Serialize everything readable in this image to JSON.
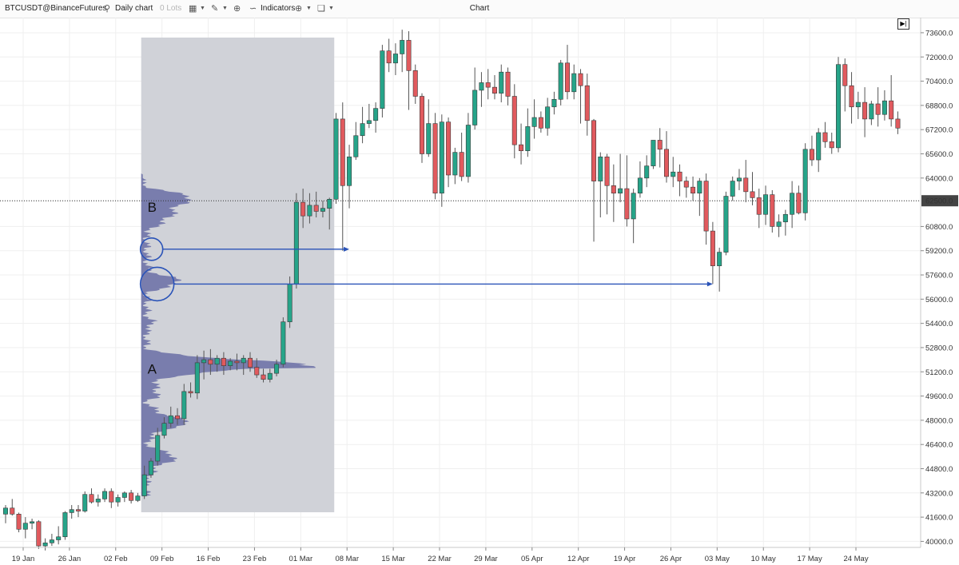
{
  "toolbar": {
    "symbol": "BTCUSDT@BinanceFutures",
    "timeframe": "Daily chart",
    "lots": "0 Lots",
    "indicators": "Indicators",
    "title": "Chart"
  },
  "colors": {
    "up": "#26a489",
    "down": "#e15a5e",
    "profile": "#6f73a8",
    "highlight": "#d0d2d8",
    "arrow": "#2a53b8"
  },
  "chart_data": {
    "type": "candlestick",
    "yaxis": {
      "range": [
        39600,
        74600
      ],
      "ticks": [
        73600,
        72000,
        70400,
        68800,
        67200,
        65600,
        64000,
        62500,
        60800,
        59200,
        57600,
        56000,
        54400,
        52800,
        51200,
        49600,
        48000,
        46400,
        44800,
        43200,
        41600,
        40000
      ],
      "current_price": 62500
    },
    "xaxis": {
      "ticks": [
        {
          "label": "19 Jan",
          "index": 0
        },
        {
          "label": "26 Jan",
          "index": 7
        },
        {
          "label": "02 Feb",
          "index": 14
        },
        {
          "label": "09 Feb",
          "index": 21
        },
        {
          "label": "16 Feb",
          "index": 28
        },
        {
          "label": "23 Feb",
          "index": 35
        },
        {
          "label": "01 Mar",
          "index": 42
        },
        {
          "label": "08 Mar",
          "index": 49
        },
        {
          "label": "15 Mar",
          "index": 56
        },
        {
          "label": "22 Mar",
          "index": 63
        },
        {
          "label": "29 Mar",
          "index": 70
        },
        {
          "label": "05 Apr",
          "index": 77
        },
        {
          "label": "12 Apr",
          "index": 84
        },
        {
          "label": "19 Apr",
          "index": 91
        },
        {
          "label": "26 Apr",
          "index": 98
        },
        {
          "label": "03 May",
          "index": 105
        },
        {
          "label": "10 May",
          "index": 112
        },
        {
          "label": "17 May",
          "index": 119
        },
        {
          "label": "24 May",
          "index": 126
        }
      ]
    },
    "candles": [
      [
        41800,
        42400,
        41200,
        42200
      ],
      [
        42200,
        42800,
        41700,
        41800
      ],
      [
        41800,
        41900,
        40600,
        40800
      ],
      [
        40800,
        41600,
        40200,
        41200
      ],
      [
        41200,
        41500,
        40800,
        41300
      ],
      [
        41300,
        41400,
        39500,
        39700
      ],
      [
        39700,
        40200,
        39400,
        39900
      ],
      [
        39900,
        40500,
        39700,
        40100
      ],
      [
        40100,
        41000,
        39800,
        40300
      ],
      [
        40300,
        42000,
        40100,
        41900
      ],
      [
        41900,
        42400,
        41500,
        42100
      ],
      [
        42100,
        42400,
        41600,
        42000
      ],
      [
        42000,
        43300,
        41900,
        43100
      ],
      [
        43100,
        43500,
        42500,
        42600
      ],
      [
        42600,
        43100,
        42300,
        42800
      ],
      [
        42800,
        43500,
        42600,
        43300
      ],
      [
        43300,
        43500,
        42200,
        42600
      ],
      [
        42600,
        43100,
        42300,
        42900
      ],
      [
        42900,
        43300,
        42600,
        43200
      ],
      [
        43200,
        43400,
        42500,
        42700
      ],
      [
        42700,
        43200,
        42600,
        43000
      ],
      [
        43000,
        45000,
        42800,
        44400
      ],
      [
        44400,
        45500,
        44200,
        45300
      ],
      [
        45300,
        47500,
        45000,
        47000
      ],
      [
        47000,
        48200,
        46800,
        47800
      ],
      [
        47800,
        48900,
        47500,
        48300
      ],
      [
        48300,
        48800,
        47700,
        48100
      ],
      [
        48100,
        50400,
        47700,
        49900
      ],
      [
        49900,
        50500,
        49500,
        49800
      ],
      [
        49800,
        52300,
        49400,
        51800
      ],
      [
        51800,
        52600,
        50700,
        52000
      ],
      [
        52000,
        52700,
        51000,
        51700
      ],
      [
        51700,
        52300,
        51200,
        52100
      ],
      [
        52100,
        52500,
        51000,
        51600
      ],
      [
        51600,
        52100,
        51300,
        51900
      ],
      [
        51900,
        52400,
        51300,
        51800
      ],
      [
        51800,
        52300,
        51000,
        52100
      ],
      [
        52100,
        52500,
        51200,
        51500
      ],
      [
        51500,
        52100,
        50800,
        51000
      ],
      [
        51000,
        51400,
        50500,
        50700
      ],
      [
        50700,
        51400,
        50500,
        51100
      ],
      [
        51100,
        52000,
        50900,
        51700
      ],
      [
        51700,
        54800,
        51500,
        54500
      ],
      [
        54500,
        57500,
        54100,
        57000
      ],
      [
        57000,
        63000,
        56700,
        62400
      ],
      [
        62400,
        63300,
        60700,
        61500
      ],
      [
        61500,
        63000,
        61000,
        62200
      ],
      [
        62200,
        63100,
        61400,
        61800
      ],
      [
        61800,
        62500,
        61400,
        62000
      ],
      [
        62000,
        62700,
        60600,
        62600
      ],
      [
        62600,
        68300,
        62300,
        67900
      ],
      [
        67900,
        69000,
        59200,
        63500
      ],
      [
        63500,
        66200,
        62000,
        65400
      ],
      [
        65400,
        67700,
        65200,
        66800
      ],
      [
        66800,
        68700,
        66300,
        67600
      ],
      [
        67600,
        68900,
        67300,
        67800
      ],
      [
        67800,
        69000,
        67000,
        68600
      ],
      [
        68600,
        72800,
        68000,
        72400
      ],
      [
        72400,
        73200,
        71000,
        71600
      ],
      [
        71600,
        72900,
        70800,
        72200
      ],
      [
        72200,
        73800,
        71000,
        73100
      ],
      [
        73100,
        73700,
        68500,
        71100
      ],
      [
        71100,
        71500,
        68900,
        69400
      ],
      [
        69400,
        69600,
        65000,
        65600
      ],
      [
        65600,
        69200,
        65400,
        67600
      ],
      [
        67600,
        68300,
        62600,
        63000
      ],
      [
        63000,
        68200,
        62100,
        67700
      ],
      [
        67700,
        68000,
        63400,
        64200
      ],
      [
        64200,
        66000,
        63600,
        65700
      ],
      [
        65700,
        67000,
        63800,
        64100
      ],
      [
        64100,
        68300,
        63700,
        67500
      ],
      [
        67500,
        71300,
        67200,
        69800
      ],
      [
        69800,
        71000,
        68700,
        70300
      ],
      [
        70300,
        71200,
        69200,
        70000
      ],
      [
        70000,
        70800,
        69200,
        69600
      ],
      [
        69600,
        71500,
        69000,
        71000
      ],
      [
        71000,
        71300,
        68800,
        69400
      ],
      [
        69400,
        70200,
        65300,
        66200
      ],
      [
        66200,
        67600,
        64900,
        65800
      ],
      [
        65800,
        68600,
        65400,
        67400
      ],
      [
        67400,
        69200,
        66600,
        68000
      ],
      [
        68000,
        68400,
        67000,
        67300
      ],
      [
        67300,
        69300,
        66800,
        68700
      ],
      [
        68700,
        69700,
        68200,
        69200
      ],
      [
        69200,
        71800,
        68800,
        71600
      ],
      [
        71600,
        72800,
        69200,
        69700
      ],
      [
        69700,
        71500,
        69200,
        70900
      ],
      [
        70900,
        71200,
        67600,
        70100
      ],
      [
        70100,
        70900,
        66800,
        67800
      ],
      [
        67800,
        67900,
        59800,
        63800
      ],
      [
        63800,
        65700,
        61400,
        65400
      ],
      [
        65400,
        65600,
        61600,
        63500
      ],
      [
        63500,
        64900,
        61100,
        63000
      ],
      [
        63000,
        65600,
        62400,
        63300
      ],
      [
        63300,
        65500,
        60800,
        61300
      ],
      [
        61300,
        63300,
        59700,
        63000
      ],
      [
        63000,
        65100,
        62700,
        64000
      ],
      [
        64000,
        65500,
        63400,
        64800
      ],
      [
        64800,
        66200,
        64600,
        66500
      ],
      [
        66500,
        67300,
        64700,
        65900
      ],
      [
        65900,
        67100,
        63700,
        64100
      ],
      [
        64100,
        65400,
        63400,
        64400
      ],
      [
        64400,
        64900,
        62800,
        63800
      ],
      [
        63800,
        64100,
        62700,
        63400
      ],
      [
        63400,
        64100,
        62500,
        63000
      ],
      [
        63000,
        64000,
        61500,
        63800
      ],
      [
        63800,
        64300,
        59600,
        60500
      ],
      [
        60500,
        61100,
        57000,
        58200
      ],
      [
        58200,
        59400,
        56500,
        59100
      ],
      [
        59100,
        63100,
        58900,
        62800
      ],
      [
        62800,
        64100,
        62500,
        63800
      ],
      [
        63800,
        64600,
        63200,
        64000
      ],
      [
        64000,
        65200,
        62400,
        63100
      ],
      [
        63100,
        64400,
        62200,
        62700
      ],
      [
        62700,
        63300,
        60700,
        61600
      ],
      [
        61600,
        63500,
        60900,
        62900
      ],
      [
        62900,
        63200,
        60400,
        60800
      ],
      [
        60800,
        61600,
        60100,
        61100
      ],
      [
        61100,
        61900,
        60200,
        61600
      ],
      [
        61600,
        63800,
        60700,
        63000
      ],
      [
        63000,
        63500,
        61600,
        61700
      ],
      [
        61700,
        66300,
        61200,
        65900
      ],
      [
        65900,
        66800,
        64800,
        65200
      ],
      [
        65200,
        67300,
        64400,
        67000
      ],
      [
        67000,
        67700,
        66000,
        66400
      ],
      [
        66400,
        67000,
        65600,
        66000
      ],
      [
        66000,
        72000,
        65700,
        71500
      ],
      [
        71500,
        71900,
        68400,
        70100
      ],
      [
        70100,
        71000,
        67600,
        68700
      ],
      [
        68700,
        69700,
        67900,
        69000
      ],
      [
        69000,
        70000,
        66700,
        67900
      ],
      [
        67900,
        69100,
        67500,
        68900
      ],
      [
        68900,
        70000,
        67400,
        68200
      ],
      [
        68200,
        69800,
        67800,
        69100
      ],
      [
        69100,
        70800,
        67400,
        67900
      ],
      [
        67900,
        68400,
        66900,
        67300
      ]
    ],
    "volume_profile": {
      "price_range": [
        43000,
        64300
      ],
      "poc": 51500,
      "node_centers": [
        62800,
        51700,
        57200,
        47800,
        45600
      ]
    },
    "annotations": [
      {
        "label": "A",
        "price": 51400
      },
      {
        "label": "B",
        "price": 62100
      },
      {
        "circle_price": 59300,
        "arrow_to_index": 52
      },
      {
        "circle_price": 57000,
        "arrow_to_index": 107
      }
    ]
  }
}
